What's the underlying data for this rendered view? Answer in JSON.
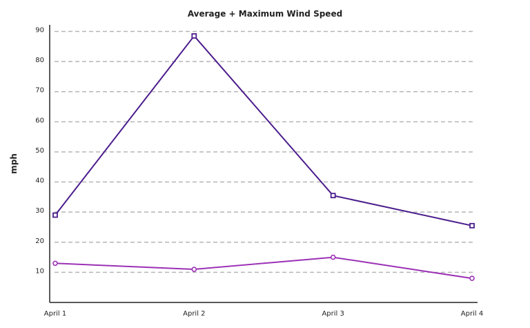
{
  "chart_data": {
    "type": "line",
    "title": "Average + Maximum Wind Speed",
    "xlabel": "",
    "ylabel": "mph",
    "categories": [
      "April 1",
      "April 2",
      "April 3",
      "April 4"
    ],
    "yticks": [
      10,
      20,
      30,
      40,
      50,
      60,
      70,
      80,
      90
    ],
    "ylim": [
      0,
      90
    ],
    "grid": true,
    "series": [
      {
        "values": [
          29,
          88.5,
          35.5,
          25.5
        ],
        "color": "#4b1c8c",
        "marker": "square"
      },
      {
        "values": [
          13,
          11,
          15,
          8
        ],
        "color": "#9b30b5",
        "marker": "circle"
      }
    ]
  }
}
